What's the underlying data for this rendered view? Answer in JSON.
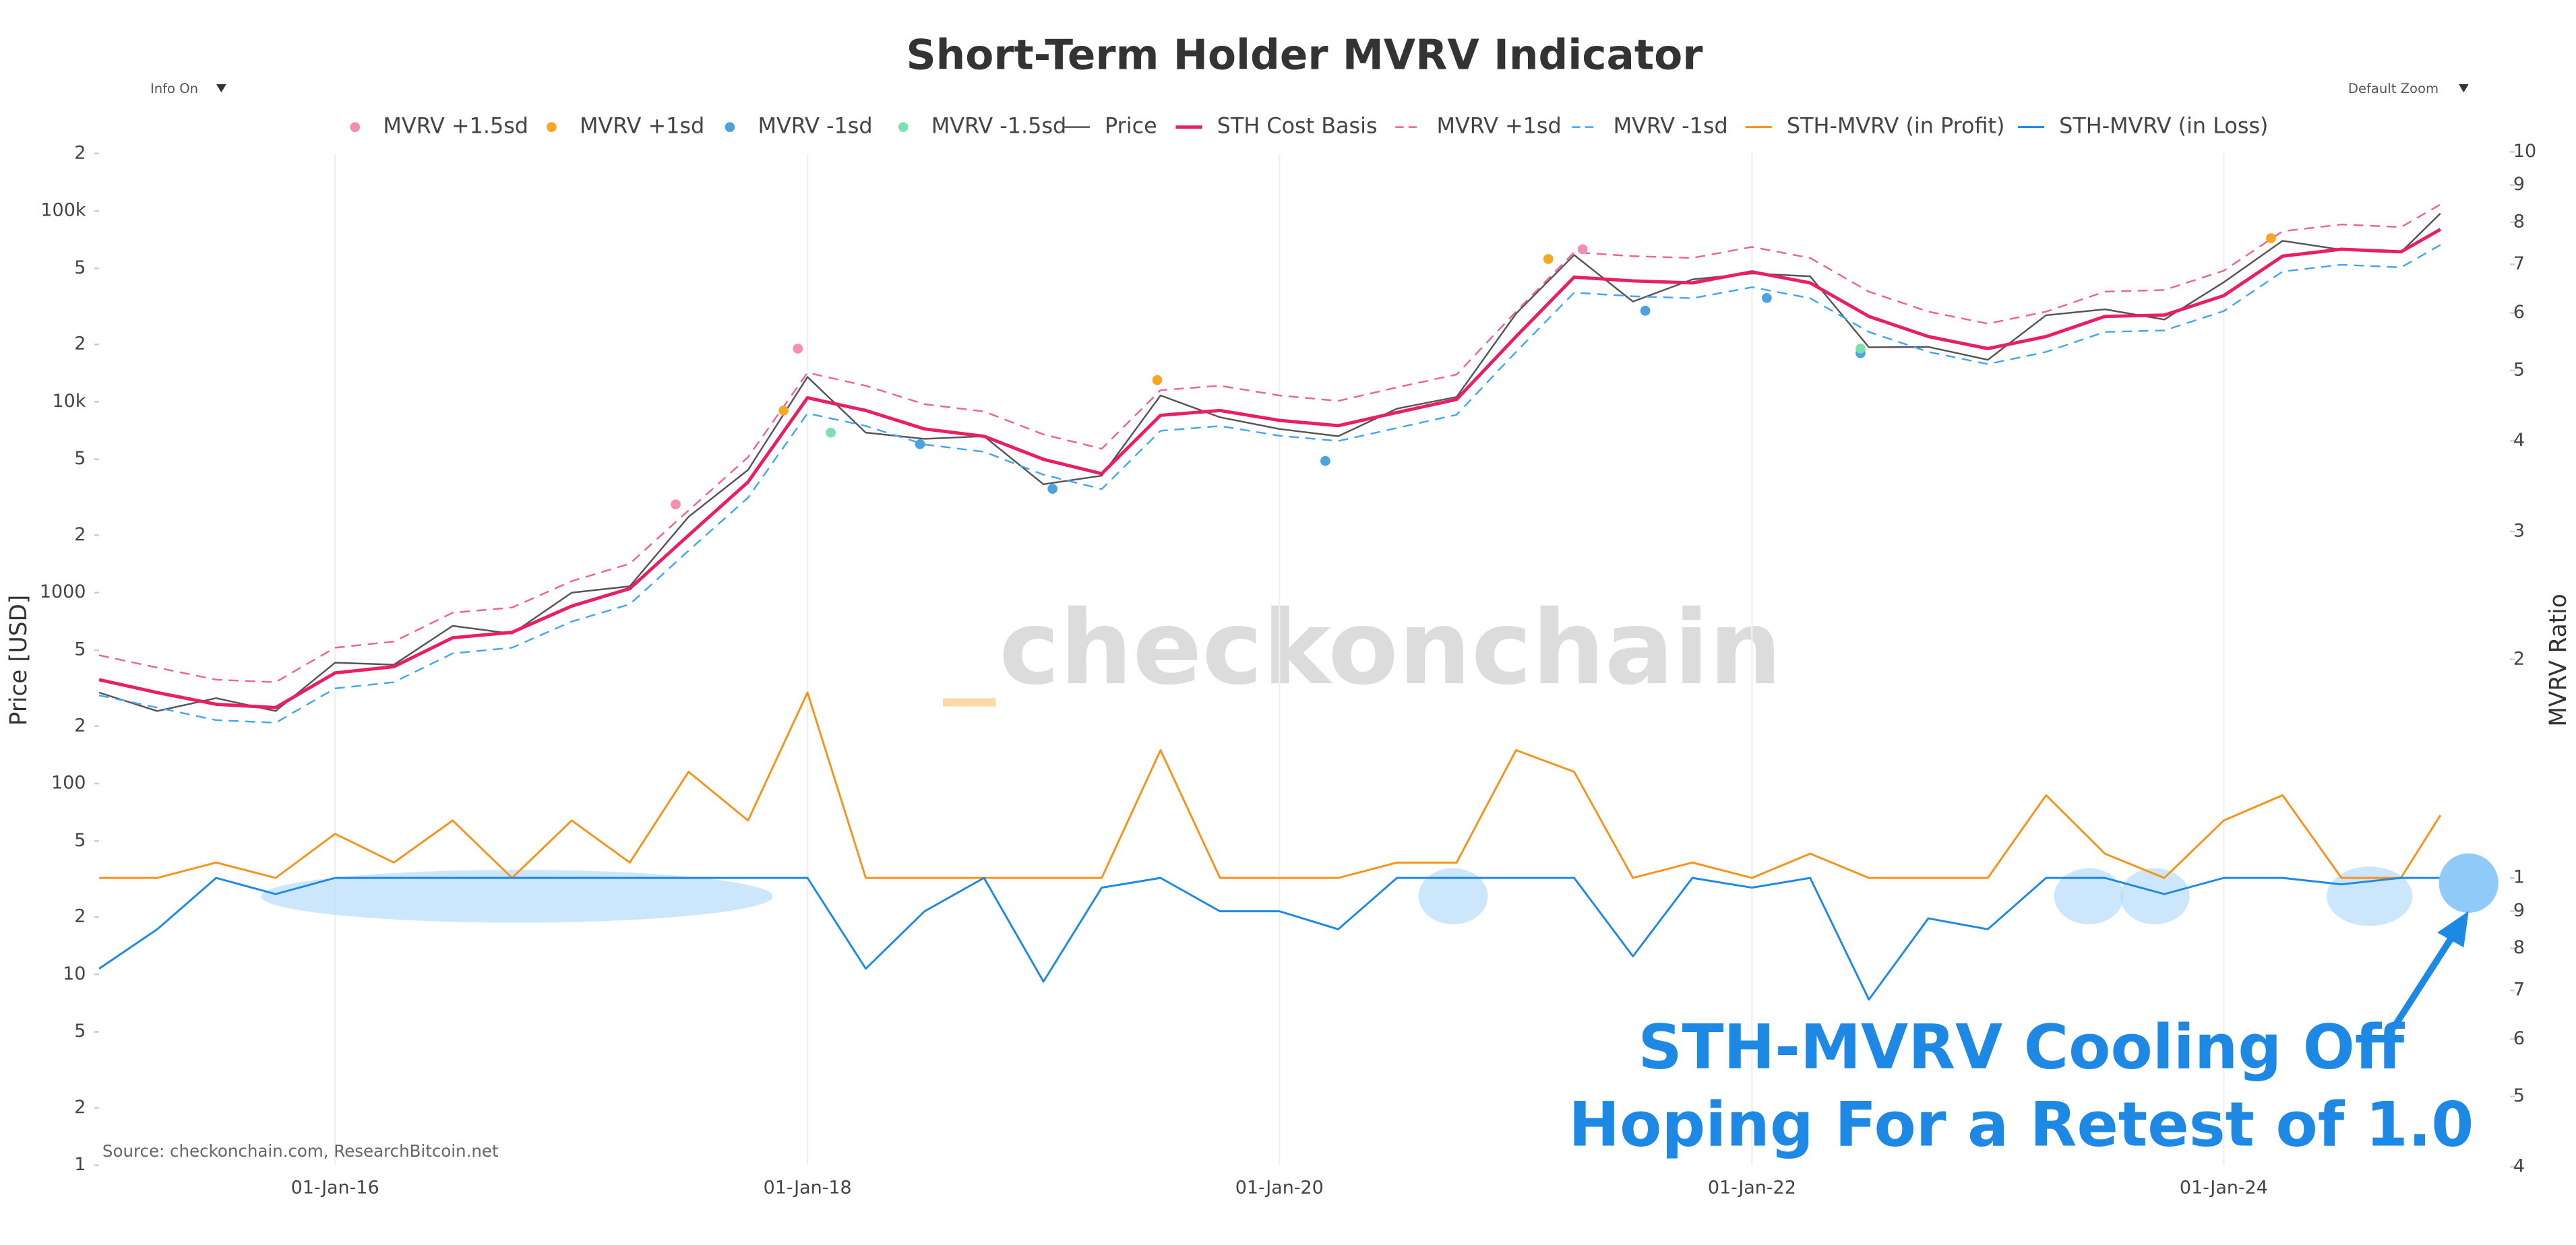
{
  "chart_data": {
    "type": "line",
    "title": "Short-Term Holder MVRV Indicator",
    "controls": {
      "left": "Info On",
      "right": "Default Zoom"
    },
    "watermark": "checkonchain",
    "source": "Source: checkonchain.com, ResearchBitcoin.net",
    "annotation": [
      "STH-MVRV Cooling Off",
      "Hoping For a Retest of 1.0"
    ],
    "ylabel": "Price [USD]",
    "y2label": "MVRV Ratio",
    "log_y": true,
    "log_y2": true,
    "grid": true,
    "legend": "top",
    "xlim": [
      "2015-01-01",
      "2025-01-01"
    ],
    "xticks": [
      {
        "value": "2016-01-01",
        "label": "01-Jan-16"
      },
      {
        "value": "2018-01-01",
        "label": "01-Jan-18"
      },
      {
        "value": "2020-01-01",
        "label": "01-Jan-20"
      },
      {
        "value": "2022-01-01",
        "label": "01-Jan-22"
      },
      {
        "value": "2024-01-01",
        "label": "01-Jan-24"
      }
    ],
    "ylim": [
      1,
      200000
    ],
    "yticks": [
      1,
      2,
      5,
      10,
      {
        "value": 20,
        "label": "2"
      },
      {
        "value": 50,
        "label": "5"
      },
      100,
      {
        "value": 200,
        "label": "2"
      },
      {
        "value": 500,
        "label": "5"
      },
      1000,
      {
        "value": 2000,
        "label": "2"
      },
      {
        "value": 5000,
        "label": "5"
      },
      {
        "value": 10000,
        "label": "10k"
      },
      {
        "value": 20000,
        "label": "2"
      },
      {
        "value": 50000,
        "label": "5"
      },
      {
        "value": 100000,
        "label": "100k"
      },
      {
        "value": 200000,
        "label": "2"
      }
    ],
    "y2lim": [
      0.4,
      10
    ],
    "y2ticks": [
      {
        "value": 0.4,
        "label": "4"
      },
      {
        "value": 0.5,
        "label": "5"
      },
      {
        "value": 0.6,
        "label": "6"
      },
      {
        "value": 0.7,
        "label": "7"
      },
      {
        "value": 0.8,
        "label": "8"
      },
      {
        "value": 0.9,
        "label": "9"
      },
      1,
      2,
      3,
      4,
      5,
      6,
      7,
      8,
      9,
      10
    ],
    "x": [
      "2015-01-01",
      "2015-04-01",
      "2015-07-01",
      "2015-10-01",
      "2016-01-01",
      "2016-04-01",
      "2016-07-01",
      "2016-10-01",
      "2017-01-01",
      "2017-04-01",
      "2017-07-01",
      "2017-10-01",
      "2018-01-01",
      "2018-04-01",
      "2018-07-01",
      "2018-10-01",
      "2019-01-01",
      "2019-04-01",
      "2019-07-01",
      "2019-10-01",
      "2020-01-01",
      "2020-04-01",
      "2020-07-01",
      "2020-10-01",
      "2021-01-01",
      "2021-04-01",
      "2021-07-01",
      "2021-10-01",
      "2022-01-01",
      "2022-04-01",
      "2022-07-01",
      "2022-10-01",
      "2023-01-01",
      "2023-04-01",
      "2023-07-01",
      "2023-10-01",
      "2024-01-01",
      "2024-04-01",
      "2024-07-01",
      "2024-10-01",
      "2024-12-01"
    ],
    "series": [
      {
        "name": "MVRV +1.5sd",
        "type": "scatter",
        "color": "#f48fb1",
        "x": [
          "2017-06-11",
          "2017-12-17",
          "2021-04-14"
        ],
        "values": [
          2900,
          19000,
          63000
        ]
      },
      {
        "name": "MVRV +1sd",
        "type": "scatter",
        "color": "#f5a623",
        "x": [
          "2017-11-25",
          "2019-06-26",
          "2021-02-20",
          "2024-03-14"
        ],
        "values": [
          9000,
          13000,
          56000,
          72000
        ]
      },
      {
        "name": "MVRV -1sd",
        "type": "scatter",
        "color": "#4aa3df",
        "x": [
          "2018-06-24",
          "2019-01-15",
          "2020-03-12",
          "2021-07-20",
          "2022-01-24",
          "2022-06-18"
        ],
        "values": [
          6000,
          3500,
          4900,
          30000,
          35000,
          18000
        ]
      },
      {
        "name": "MVRV -1.5sd",
        "type": "scatter",
        "color": "#7de0b0",
        "x": [
          "2018-02-06",
          "2022-06-18"
        ],
        "values": [
          6900,
          19000
        ]
      },
      {
        "name": "Price",
        "type": "line",
        "color": "#555555",
        "width": 1,
        "values": [
          300,
          240,
          280,
          240,
          430,
          420,
          670,
          610,
          1000,
          1080,
          2500,
          4400,
          13500,
          6900,
          6400,
          6600,
          3700,
          4100,
          10800,
          8300,
          7200,
          6600,
          9200,
          10600,
          29000,
          58800,
          33500,
          43800,
          47000,
          45500,
          19300,
          19400,
          16600,
          28400,
          30500,
          27000,
          42300,
          69700,
          62700,
          60800,
          97000
        ]
      },
      {
        "name": "STH Cost Basis",
        "type": "line",
        "color": "#e91e63",
        "width": 2,
        "values": [
          350,
          300,
          260,
          250,
          380,
          410,
          580,
          620,
          850,
          1050,
          2000,
          3800,
          10500,
          9000,
          7200,
          6600,
          5000,
          4200,
          8500,
          9000,
          8000,
          7500,
          8800,
          10300,
          22000,
          45000,
          43000,
          42000,
          48000,
          42000,
          28000,
          22000,
          19000,
          22000,
          28000,
          28500,
          36000,
          58000,
          63000,
          61000,
          80000
        ]
      },
      {
        "name": "MVRV +1sd",
        "type": "line",
        "color": "#f06292",
        "width": 1,
        "dash": true,
        "values": [
          470,
          405,
          350,
          340,
          515,
          555,
          785,
          835,
          1150,
          1420,
          2700,
          5130,
          14200,
          12150,
          9720,
          8900,
          6750,
          5670,
          11500,
          12150,
          10800,
          10100,
          11900,
          13900,
          29700,
          60750,
          58000,
          56700,
          64800,
          56700,
          37800,
          29700,
          25650,
          29700,
          37800,
          38500,
          48600,
          78300,
          85000,
          82350,
          108000
        ]
      },
      {
        "name": "MVRV -1sd",
        "type": "line",
        "color": "#42a5f5",
        "width": 1,
        "dash": true,
        "values": [
          290,
          250,
          215,
          208,
          315,
          340,
          480,
          515,
          705,
          870,
          1660,
          3150,
          8700,
          7470,
          5980,
          5480,
          4150,
          3490,
          7050,
          7470,
          6640,
          6230,
          7300,
          8550,
          18260,
          37350,
          35700,
          34860,
          39840,
          34860,
          23240,
          18260,
          15770,
          18260,
          23240,
          23650,
          29880,
          48140,
          52290,
          50630,
          66400
        ]
      },
      {
        "name": "STH-MVRV (in Profit)",
        "type": "line",
        "color": "#f7931a",
        "width": 1.2,
        "axis": "y2",
        "values": [
          1,
          1,
          1.05,
          1,
          1.15,
          1.05,
          1.2,
          1,
          1.2,
          1.05,
          1.4,
          1.2,
          1.8,
          1,
          1,
          1,
          1,
          1,
          1.5,
          1,
          1,
          1,
          1.05,
          1.05,
          1.5,
          1.4,
          1,
          1.05,
          1,
          1.08,
          1,
          1,
          1,
          1.3,
          1.08,
          1,
          1.2,
          1.3,
          1,
          1,
          1.22
        ]
      },
      {
        "name": "STH-MVRV (in Loss)",
        "type": "line",
        "color": "#1e88e5",
        "width": 1.2,
        "axis": "y2",
        "values": [
          0.75,
          0.85,
          1,
          0.95,
          1,
          1,
          1,
          1,
          1,
          1,
          1,
          1,
          1,
          0.75,
          0.9,
          1,
          0.72,
          0.97,
          1,
          0.9,
          0.9,
          0.85,
          1,
          1,
          1,
          1,
          0.78,
          1,
          0.97,
          1,
          0.68,
          0.88,
          0.85,
          1,
          1,
          0.95,
          1,
          1,
          0.98,
          1,
          1
        ]
      }
    ]
  }
}
